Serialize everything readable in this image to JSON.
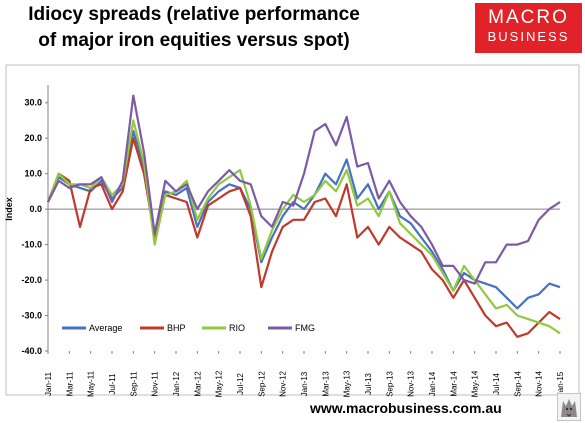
{
  "title_line1": "Idiocy spreads (relative performance",
  "title_line2": "of major iron equities versus spot)",
  "logo_line1": "MACRO",
  "logo_line2": "BUSINESS",
  "url": "www.macrobusiness.com.au",
  "colors": {
    "Average": "#4472c4",
    "BHP": "#c0392b",
    "RIO": "#92c83e",
    "FMG": "#7d5aa6",
    "brand": "#e12329"
  },
  "chart_data": {
    "type": "line",
    "title": "Idiocy spreads (relative performance of major iron equities versus spot)",
    "ylabel": "Index",
    "ylim": [
      -40,
      35
    ],
    "yticks": [
      "30.0",
      "20.0",
      "10.0",
      "0.0",
      "-10.0",
      "-20.0",
      "-30.0",
      "-40.0"
    ],
    "ytick_values": [
      30,
      20,
      10,
      0,
      -10,
      -20,
      -30,
      -40
    ],
    "xticks": [
      "Jan-11",
      "Mar-11",
      "May-11",
      "Jul-11",
      "Sep-11",
      "Nov-11",
      "Jan-12",
      "Mar-12",
      "May-12",
      "Jul-12",
      "Sep-12",
      "Nov-12",
      "Jan-13",
      "Mar-13",
      "May-13",
      "Jul-13",
      "Sep-13",
      "Nov-13",
      "Jan-14",
      "Mar-14",
      "May-14",
      "Jul-14",
      "Sep-14",
      "Nov-14",
      "Jan-15"
    ],
    "legend_position": "bottom-left inside",
    "grid": false,
    "x": [
      "Jan-11",
      "Feb-11",
      "Mar-11",
      "Apr-11",
      "May-11",
      "Jun-11",
      "Jul-11",
      "Aug-11",
      "Sep-11",
      "Oct-11",
      "Nov-11",
      "Dec-11",
      "Jan-12",
      "Feb-12",
      "Mar-12",
      "Apr-12",
      "May-12",
      "Jun-12",
      "Jul-12",
      "Aug-12",
      "Sep-12",
      "Oct-12",
      "Nov-12",
      "Dec-12",
      "Jan-13",
      "Feb-13",
      "Mar-13",
      "Apr-13",
      "May-13",
      "Jun-13",
      "Jul-13",
      "Aug-13",
      "Sep-13",
      "Oct-13",
      "Nov-13",
      "Dec-13",
      "Jan-14",
      "Feb-14",
      "Mar-14",
      "Apr-14",
      "May-14",
      "Jun-14",
      "Jul-14",
      "Aug-14",
      "Sep-14",
      "Oct-14",
      "Nov-14",
      "Dec-14",
      "Jan-15"
    ],
    "series": [
      {
        "name": "Average",
        "values": [
          2,
          9,
          7,
          6,
          5,
          8,
          3,
          6,
          22,
          12,
          -8,
          5,
          4,
          6,
          -5,
          2,
          5,
          7,
          6,
          0,
          -15,
          -8,
          -2,
          2,
          0,
          4,
          10,
          7,
          14,
          3,
          7,
          0,
          5,
          -2,
          -4,
          -8,
          -12,
          -17,
          -23,
          -18,
          -20,
          -21,
          -22,
          -25,
          -28,
          -25,
          -24,
          -21,
          -22
        ]
      },
      {
        "name": "BHP",
        "values": [
          2,
          10,
          8,
          -5,
          6,
          7,
          0,
          5,
          20,
          10,
          -8,
          4,
          3,
          2,
          -8,
          1,
          3,
          5,
          6,
          -2,
          -22,
          -12,
          -5,
          -3,
          -3,
          2,
          3,
          -2,
          7,
          -8,
          -5,
          -10,
          -5,
          -8,
          -10,
          -12,
          -17,
          -20,
          -25,
          -20,
          -25,
          -30,
          -33,
          -32,
          -36,
          -35,
          -32,
          -29,
          -31
        ]
      },
      {
        "name": "RIO",
        "values": [
          2,
          10,
          7,
          7,
          6,
          9,
          4,
          7,
          25,
          13,
          -10,
          4,
          5,
          8,
          -3,
          3,
          7,
          9,
          11,
          1,
          -14,
          -6,
          0,
          4,
          2,
          4,
          8,
          5,
          11,
          1,
          3,
          -2,
          5,
          -4,
          -7,
          -10,
          -13,
          -18,
          -23,
          -16,
          -20,
          -24,
          -28,
          -27,
          -30,
          -31,
          -32,
          -33,
          -35
        ]
      },
      {
        "name": "FMG",
        "values": [
          2,
          8,
          6,
          7,
          7,
          9,
          2,
          8,
          32,
          16,
          -7,
          8,
          5,
          7,
          0,
          5,
          8,
          11,
          8,
          7,
          -2,
          -5,
          2,
          1,
          10,
          22,
          24,
          18,
          26,
          12,
          13,
          3,
          8,
          2,
          -2,
          -5,
          -10,
          -16,
          -16,
          -20,
          -21,
          -15,
          -15,
          -10,
          -10,
          -9,
          -3,
          0,
          2
        ]
      }
    ]
  }
}
